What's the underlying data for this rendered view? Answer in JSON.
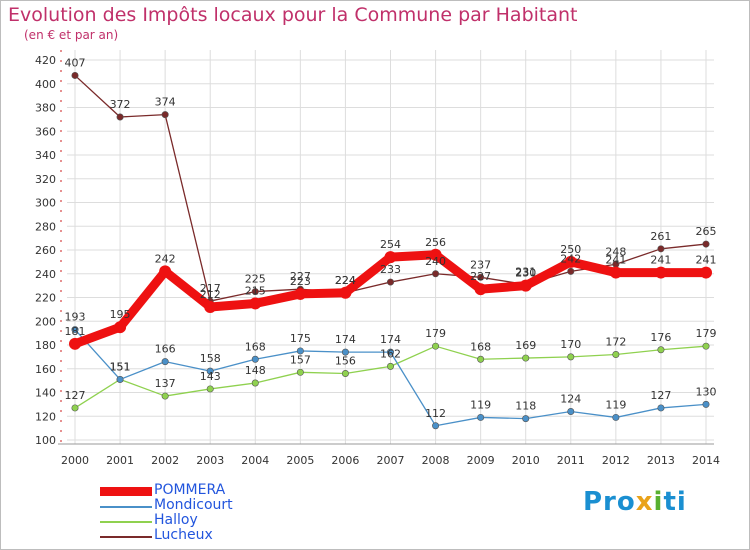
{
  "title": "Evolution des Impôts locaux pour la Commune par Habitant",
  "subtitle": "(en € et par an)",
  "logo": {
    "p1": "Pro",
    "p2": "x",
    "p3": "i",
    "p4": "ti"
  },
  "colors": {
    "POMMERA": "#ee1111",
    "Mondicourt": "#4a90c8",
    "Halloy": "#8fd14f",
    "Lucheux": "#7a2a2a",
    "axis_text": "#333333",
    "grid": "#dddddd"
  },
  "chart_data": {
    "type": "line",
    "title": "Evolution des Impôts locaux pour la Commune par Habitant",
    "subtitle": "(en € et par an)",
    "xlabel": "",
    "ylabel": "",
    "ylim": [
      100,
      420
    ],
    "yticks": [
      100,
      120,
      140,
      160,
      180,
      200,
      220,
      240,
      260,
      280,
      300,
      320,
      340,
      360,
      380,
      400,
      420
    ],
    "categories": [
      "2000",
      "2001",
      "2002",
      "2003",
      "2004",
      "2005",
      "2006",
      "2007",
      "2008",
      "2009",
      "2010",
      "2011",
      "2012",
      "2013",
      "2014"
    ],
    "legend_position": "bottom-left",
    "series": [
      {
        "name": "Lucheux",
        "values": [
          407,
          372,
          374,
          217,
          225,
          227,
          224,
          233,
          240,
          237,
          231,
          242,
          248,
          261,
          265
        ]
      },
      {
        "name": "Halloy",
        "values": [
          127,
          151,
          137,
          143,
          148,
          157,
          156,
          162,
          179,
          168,
          169,
          170,
          172,
          176,
          179
        ]
      },
      {
        "name": "Mondicourt",
        "values": [
          193,
          151,
          166,
          158,
          168,
          175,
          174,
          174,
          112,
          119,
          118,
          124,
          119,
          127,
          130
        ]
      },
      {
        "name": "POMMERA",
        "values": [
          181,
          195,
          242,
          212,
          215,
          223,
          224,
          254,
          256,
          227,
          230,
          250,
          241,
          241,
          241
        ]
      }
    ],
    "legend": [
      "POMMERA",
      "Mondicourt",
      "Halloy",
      "Lucheux"
    ]
  }
}
